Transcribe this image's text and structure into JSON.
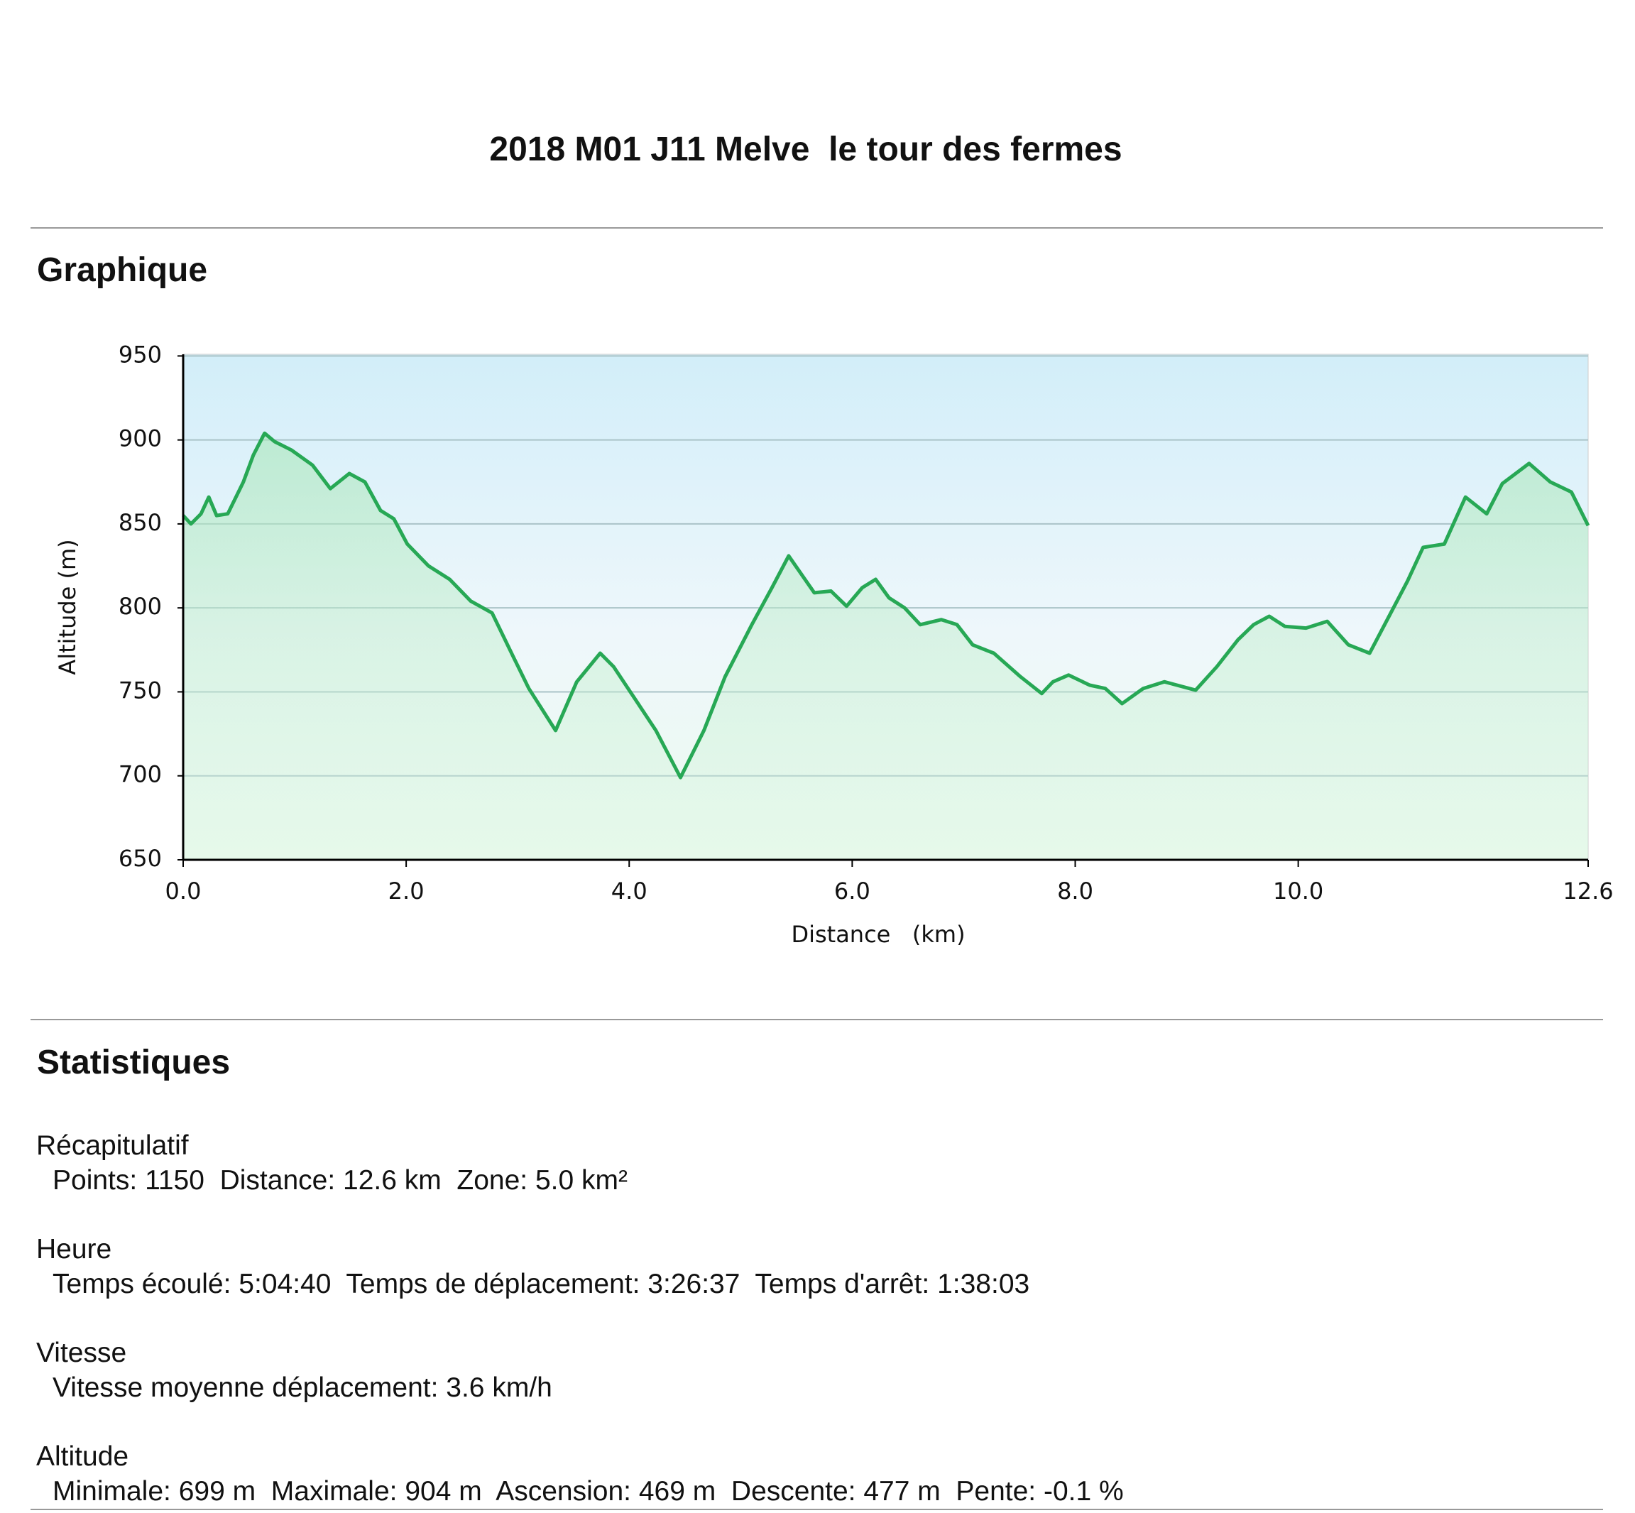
{
  "header": {
    "title": "2018 M01 J11 Melve  le tour des fermes"
  },
  "graph_section": {
    "heading": "Graphique"
  },
  "chart_data": {
    "type": "area",
    "y_label": "Altitude (m)",
    "x_label": "Distance   (km)",
    "color": "#27a855",
    "grid": true,
    "x": [
      0,
      0.07,
      0.16,
      0.23,
      0.3,
      0.4,
      0.54,
      0.63,
      0.73,
      0.82,
      0.97,
      1.16,
      1.32,
      1.49,
      1.63,
      1.77,
      1.89,
      2.01,
      2.2,
      2.39,
      2.58,
      2.77,
      2.96,
      3.1,
      3.34,
      3.53,
      3.74,
      3.86,
      4.05,
      4.24,
      4.46,
      4.67,
      4.86,
      5.1,
      5.28,
      5.43,
      5.66,
      5.81,
      5.95,
      6.09,
      6.21,
      6.33,
      6.47,
      6.61,
      6.8,
      6.94,
      7.08,
      7.27,
      7.51,
      7.7,
      7.8,
      7.94,
      8.13,
      8.27,
      8.42,
      8.61,
      8.8,
      9.08,
      9.27,
      9.46,
      9.6,
      9.74,
      9.88,
      10.07,
      10.26,
      10.45,
      10.64,
      10.83,
      10.98,
      11.12,
      11.31,
      11.5,
      11.69,
      11.83,
      12.07,
      12.26,
      12.45,
      12.6
    ],
    "values": [
      855,
      850,
      856,
      866,
      855,
      856,
      875,
      891,
      904,
      899,
      894,
      885,
      871,
      880,
      875,
      858,
      853,
      838,
      825,
      817,
      804,
      797,
      771,
      752,
      727,
      756,
      773,
      765,
      746,
      727,
      699,
      727,
      759,
      790,
      812,
      831,
      809,
      810,
      801,
      812,
      817,
      806,
      800,
      790,
      793,
      790,
      778,
      773,
      759,
      749,
      756,
      760,
      754,
      752,
      743,
      752,
      756,
      751,
      765,
      781,
      790,
      795,
      789,
      788,
      792,
      778,
      773,
      797,
      816,
      836,
      838,
      866,
      856,
      874,
      886,
      875,
      869,
      849
    ],
    "xlim": [
      0,
      12.6
    ],
    "ylim": [
      650,
      951
    ],
    "xticks": [
      {
        "value": 0,
        "label": "0.0"
      },
      {
        "value": 2,
        "label": "2.0"
      },
      {
        "value": 4,
        "label": "4.0"
      },
      {
        "value": 6,
        "label": "6.0"
      },
      {
        "value": 8,
        "label": "8.0"
      },
      {
        "value": 10,
        "label": "10.0"
      },
      12.6
    ],
    "yticks": [
      650,
      700,
      750,
      800,
      850,
      900,
      950
    ]
  },
  "stats_section": {
    "heading": "Statistiques",
    "groups": [
      {
        "heading": "Récapitulatif",
        "line": "Points: 1150  Distance: 12.6 km  Zone: 5.0 km²"
      },
      {
        "heading": "Heure",
        "line": "Temps écoulé: 5:04:40  Temps de déplacement: 3:26:37  Temps d'arrêt: 1:38:03"
      },
      {
        "heading": "Vitesse",
        "line": "Vitesse moyenne déplacement: 3.6 km/h"
      },
      {
        "heading": "Altitude",
        "line": "Minimale: 699 m  Maximale: 904 m  Ascension: 469 m  Descente: 477 m  Pente: -0.1 %"
      }
    ]
  }
}
